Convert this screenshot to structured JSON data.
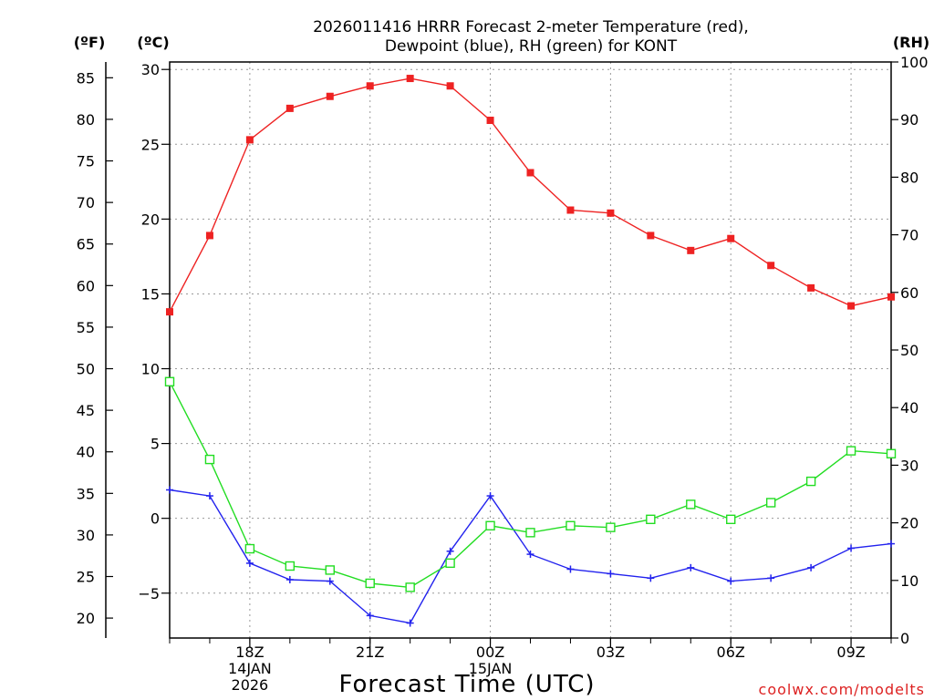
{
  "chart_data": {
    "type": "line",
    "title_line1": "2026011416 HRRR Forecast 2-meter Temperature (red),",
    "title_line2": "Dewpoint (blue), RH (green) for KONT",
    "xlabel": "Forecast Time (UTC)",
    "unit_f": "(ºF)",
    "unit_c": "(ºC)",
    "unit_rh": "(RH)",
    "watermark": "coolwx.com/modelts",
    "x_hours": [
      0,
      1,
      2,
      3,
      4,
      5,
      6,
      7,
      8,
      9,
      10,
      11,
      12,
      13,
      14,
      15,
      16,
      17,
      18
    ],
    "x_ticks": [
      {
        "hour": 2,
        "lines": [
          "18Z",
          "14JAN",
          "2026"
        ]
      },
      {
        "hour": 5,
        "lines": [
          "21Z"
        ]
      },
      {
        "hour": 8,
        "lines": [
          "00Z",
          "15JAN"
        ]
      },
      {
        "hour": 11,
        "lines": [
          "03Z"
        ]
      },
      {
        "hour": 14,
        "lines": [
          "06Z"
        ]
      },
      {
        "hour": 17,
        "lines": [
          "09Z"
        ]
      }
    ],
    "y_c_range": [
      -8,
      30.5
    ],
    "y_c_ticks": [
      "30",
      "25",
      "20",
      "15",
      "10",
      "5",
      "0",
      "−5"
    ],
    "y_c_tick_values": [
      30,
      25,
      20,
      15,
      10,
      5,
      0,
      -5
    ],
    "y_f_ticks": [
      "85",
      "80",
      "75",
      "70",
      "65",
      "60",
      "55",
      "50",
      "45",
      "40",
      "35",
      "30",
      "25",
      "20"
    ],
    "y_f_tick_values": [
      85,
      80,
      75,
      70,
      65,
      60,
      55,
      50,
      45,
      40,
      35,
      30,
      25,
      20
    ],
    "y_rh_ticks": [
      "100",
      "90",
      "80",
      "70",
      "60",
      "50",
      "40",
      "30",
      "20",
      "10",
      "0"
    ],
    "y_rh_tick_values": [
      100,
      90,
      80,
      70,
      60,
      50,
      40,
      30,
      20,
      10,
      0
    ],
    "series": [
      {
        "name": "Temperature",
        "color": "#ee2222",
        "marker": "filled-square",
        "axis": "C",
        "values": [
          13.8,
          18.9,
          25.3,
          27.4,
          28.2,
          28.9,
          29.4,
          28.9,
          26.6,
          23.1,
          20.6,
          20.4,
          18.9,
          17.9,
          18.7,
          16.9,
          15.4,
          14.2,
          14.8
        ]
      },
      {
        "name": "Dewpoint",
        "color": "#2222ee",
        "marker": "plus",
        "axis": "C",
        "values": [
          1.9,
          1.5,
          -3.0,
          -4.1,
          -4.2,
          -6.5,
          -7.0,
          -2.2,
          1.5,
          -2.4,
          -3.4,
          -3.7,
          -4.0,
          -3.3,
          -4.2,
          -4.0,
          -3.3,
          -2.0,
          -1.7
        ]
      },
      {
        "name": "RH",
        "color": "#22dd22",
        "marker": "open-square",
        "axis": "RH",
        "values": [
          44.5,
          31.0,
          15.5,
          12.5,
          11.8,
          9.5,
          8.8,
          13.0,
          19.5,
          18.3,
          19.5,
          19.2,
          20.6,
          23.2,
          20.6,
          23.5,
          27.2,
          32.5,
          32.0
        ]
      }
    ]
  }
}
